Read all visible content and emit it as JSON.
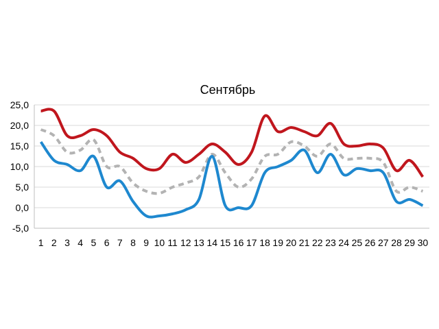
{
  "chart_data": {
    "type": "line",
    "title": "Сентябрь",
    "xlabel": "",
    "ylabel": "",
    "ylim": [
      -5,
      25
    ],
    "y_ticks": [
      "-5,0",
      "0,0",
      "5,0",
      "10,0",
      "15,0",
      "20,0",
      "25,0"
    ],
    "y_tick_values": [
      -5,
      0,
      5,
      10,
      15,
      20,
      25
    ],
    "categories": [
      "1",
      "2",
      "3",
      "4",
      "5",
      "6",
      "7",
      "8",
      "9",
      "10",
      "11",
      "12",
      "13",
      "14",
      "15",
      "16",
      "17",
      "18",
      "19",
      "20",
      "21",
      "22",
      "23",
      "24",
      "25",
      "26",
      "27",
      "28",
      "29",
      "30"
    ],
    "grid": "horizontal",
    "legend": "none",
    "series": [
      {
        "color": "#c0161d",
        "style": "solid",
        "values": [
          23.5,
          23.5,
          17.5,
          17.5,
          19.0,
          17.5,
          13.5,
          12.0,
          9.5,
          9.5,
          13.0,
          11.0,
          13.0,
          15.5,
          13.5,
          10.5,
          13.5,
          22.3,
          18.5,
          19.5,
          18.5,
          17.5,
          20.5,
          15.5,
          15.0,
          15.5,
          14.5,
          9.0,
          11.5,
          7.5
        ]
      },
      {
        "color": "#b3b3b3",
        "style": "dashed",
        "values": [
          19.0,
          17.5,
          13.5,
          14.0,
          16.5,
          10.0,
          10.0,
          6.0,
          4.0,
          3.5,
          5.0,
          6.0,
          7.5,
          13.0,
          8.5,
          5.0,
          7.0,
          12.5,
          13.0,
          16.0,
          15.0,
          12.5,
          15.5,
          12.0,
          12.0,
          12.0,
          11.0,
          4.0,
          5.0,
          4.0
        ]
      },
      {
        "color": "#1e88cf",
        "style": "solid",
        "values": [
          16.0,
          11.5,
          10.5,
          9.0,
          12.5,
          5.0,
          6.5,
          1.5,
          -2.0,
          -2.0,
          -1.5,
          -0.5,
          2.0,
          12.5,
          0.5,
          0.0,
          0.5,
          8.5,
          10.0,
          11.5,
          14.0,
          8.5,
          13.0,
          8.0,
          9.5,
          9.0,
          8.5,
          1.5,
          2.0,
          0.5
        ]
      }
    ]
  }
}
